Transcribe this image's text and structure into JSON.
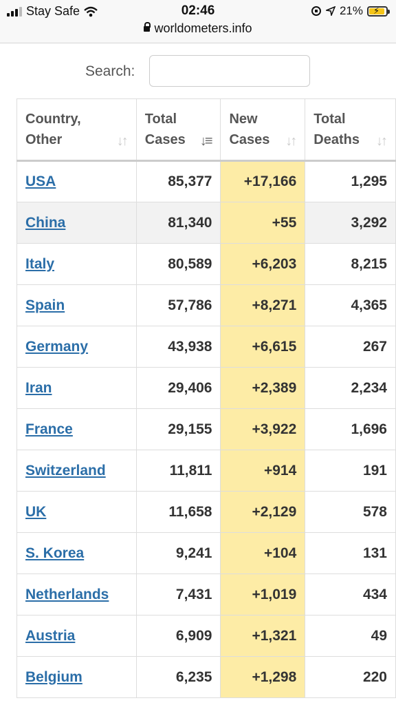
{
  "status_bar": {
    "carrier": "Stay Safe",
    "time": "02:46",
    "battery": "21%",
    "url": "worldometers.info"
  },
  "search": {
    "label": "Search:",
    "value": ""
  },
  "table": {
    "headers": [
      {
        "line1": "Country,",
        "line2": "Other"
      },
      {
        "line1": "Total",
        "line2": "Cases"
      },
      {
        "line1": "New",
        "line2": "Cases"
      },
      {
        "line1": "Total",
        "line2": "Deaths"
      }
    ],
    "rows": [
      {
        "country": "USA",
        "total_cases": "85,377",
        "new_cases": "+17,166",
        "total_deaths": "1,295"
      },
      {
        "country": "China",
        "total_cases": "81,340",
        "new_cases": "+55",
        "total_deaths": "3,292"
      },
      {
        "country": "Italy",
        "total_cases": "80,589",
        "new_cases": "+6,203",
        "total_deaths": "8,215"
      },
      {
        "country": "Spain",
        "total_cases": "57,786",
        "new_cases": "+8,271",
        "total_deaths": "4,365"
      },
      {
        "country": "Germany",
        "total_cases": "43,938",
        "new_cases": "+6,615",
        "total_deaths": "267"
      },
      {
        "country": "Iran",
        "total_cases": "29,406",
        "new_cases": "+2,389",
        "total_deaths": "2,234"
      },
      {
        "country": "France",
        "total_cases": "29,155",
        "new_cases": "+3,922",
        "total_deaths": "1,696"
      },
      {
        "country": "Switzerland",
        "total_cases": "11,811",
        "new_cases": "+914",
        "total_deaths": "191"
      },
      {
        "country": "UK",
        "total_cases": "11,658",
        "new_cases": "+2,129",
        "total_deaths": "578"
      },
      {
        "country": "S. Korea",
        "total_cases": "9,241",
        "new_cases": "+104",
        "total_deaths": "131"
      },
      {
        "country": "Netherlands",
        "total_cases": "7,431",
        "new_cases": "+1,019",
        "total_deaths": "434"
      },
      {
        "country": "Austria",
        "total_cases": "6,909",
        "new_cases": "+1,321",
        "total_deaths": "49"
      },
      {
        "country": "Belgium",
        "total_cases": "6,235",
        "new_cases": "+1,298",
        "total_deaths": "220"
      }
    ]
  }
}
